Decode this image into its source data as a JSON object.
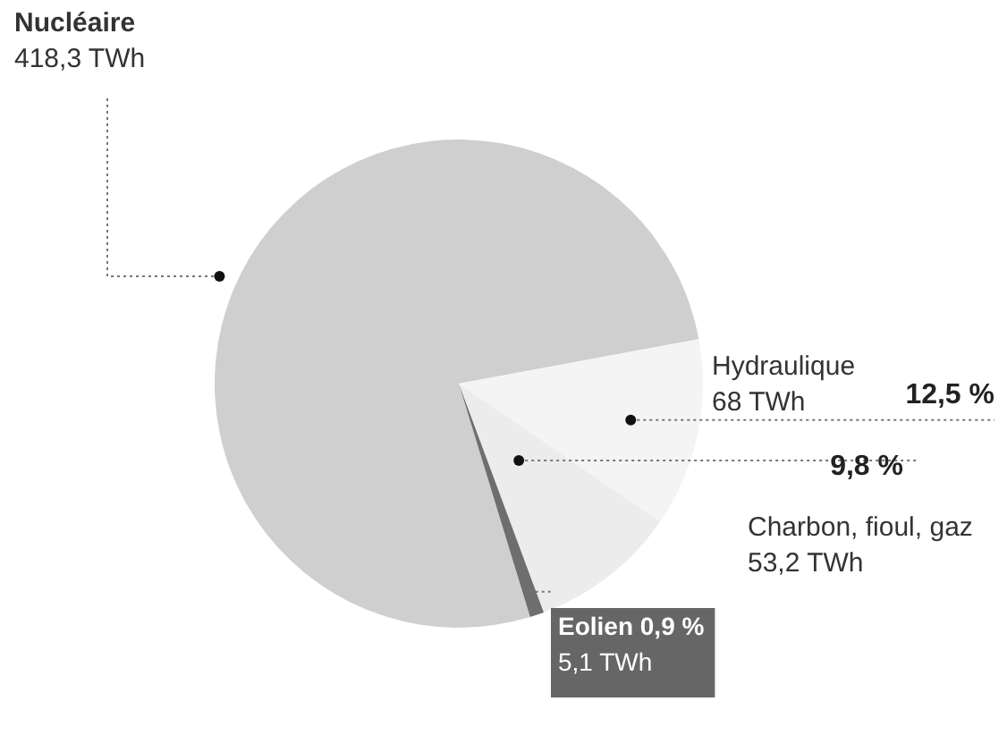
{
  "chart_data": {
    "type": "pie",
    "categories": [
      "Nucléaire",
      "Hydraulique",
      "Charbon, fioul, gaz",
      "Eolien"
    ],
    "values": [
      418.3,
      68,
      53.2,
      5.1
    ],
    "colors": [
      "#cfcfcf",
      "#f4f4f4",
      "#ececec",
      "#6e6e6e"
    ],
    "value_labels": [
      "418,3 TWh",
      "68 TWh",
      "53,2 TWh",
      "5,1 TWh"
    ],
    "annotations": [
      "12,5 %",
      "9,8 %",
      "0,9 %"
    ],
    "legend": false
  }
}
